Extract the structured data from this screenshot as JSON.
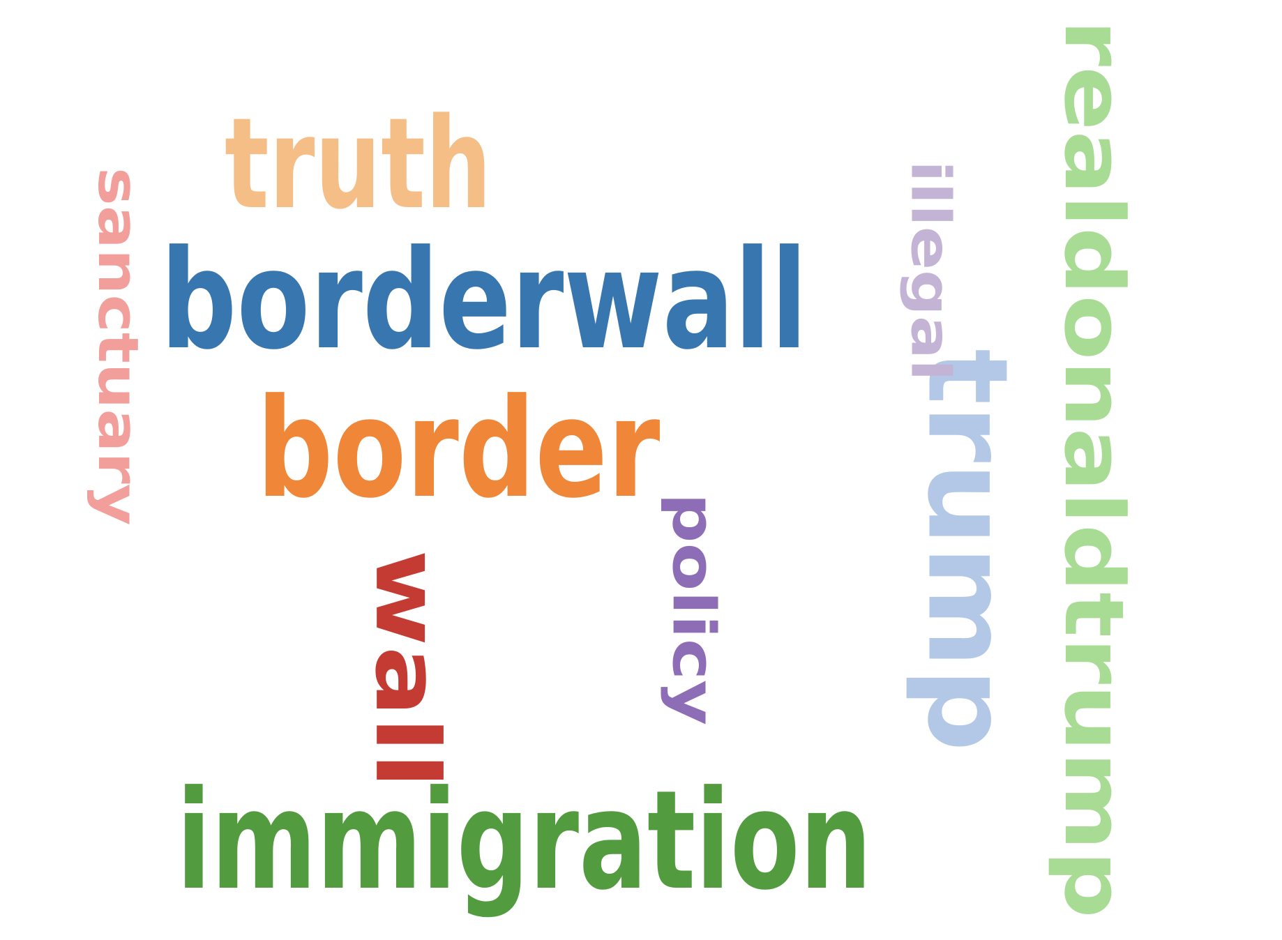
{
  "word_cloud": {
    "words": [
      {
        "text": "realdonaldtrump",
        "color": "#a8dc94",
        "orientation": "vertical"
      },
      {
        "text": "borderwall",
        "color": "#3776ae",
        "orientation": "horizontal"
      },
      {
        "text": "truth",
        "color": "#f5be86",
        "orientation": "horizontal"
      },
      {
        "text": "border",
        "color": "#f08637",
        "orientation": "horizontal"
      },
      {
        "text": "trump",
        "color": "#b2c8e6",
        "orientation": "vertical"
      },
      {
        "text": "illegal",
        "color": "#c3b3d5",
        "orientation": "vertical"
      },
      {
        "text": "policy",
        "color": "#8e6db7",
        "orientation": "vertical"
      },
      {
        "text": "wall",
        "color": "#c43b33",
        "orientation": "vertical"
      },
      {
        "text": "immigration",
        "color": "#529c3f",
        "orientation": "horizontal"
      },
      {
        "text": "sanctuary",
        "color": "#f29e9b",
        "orientation": "vertical"
      }
    ]
  }
}
